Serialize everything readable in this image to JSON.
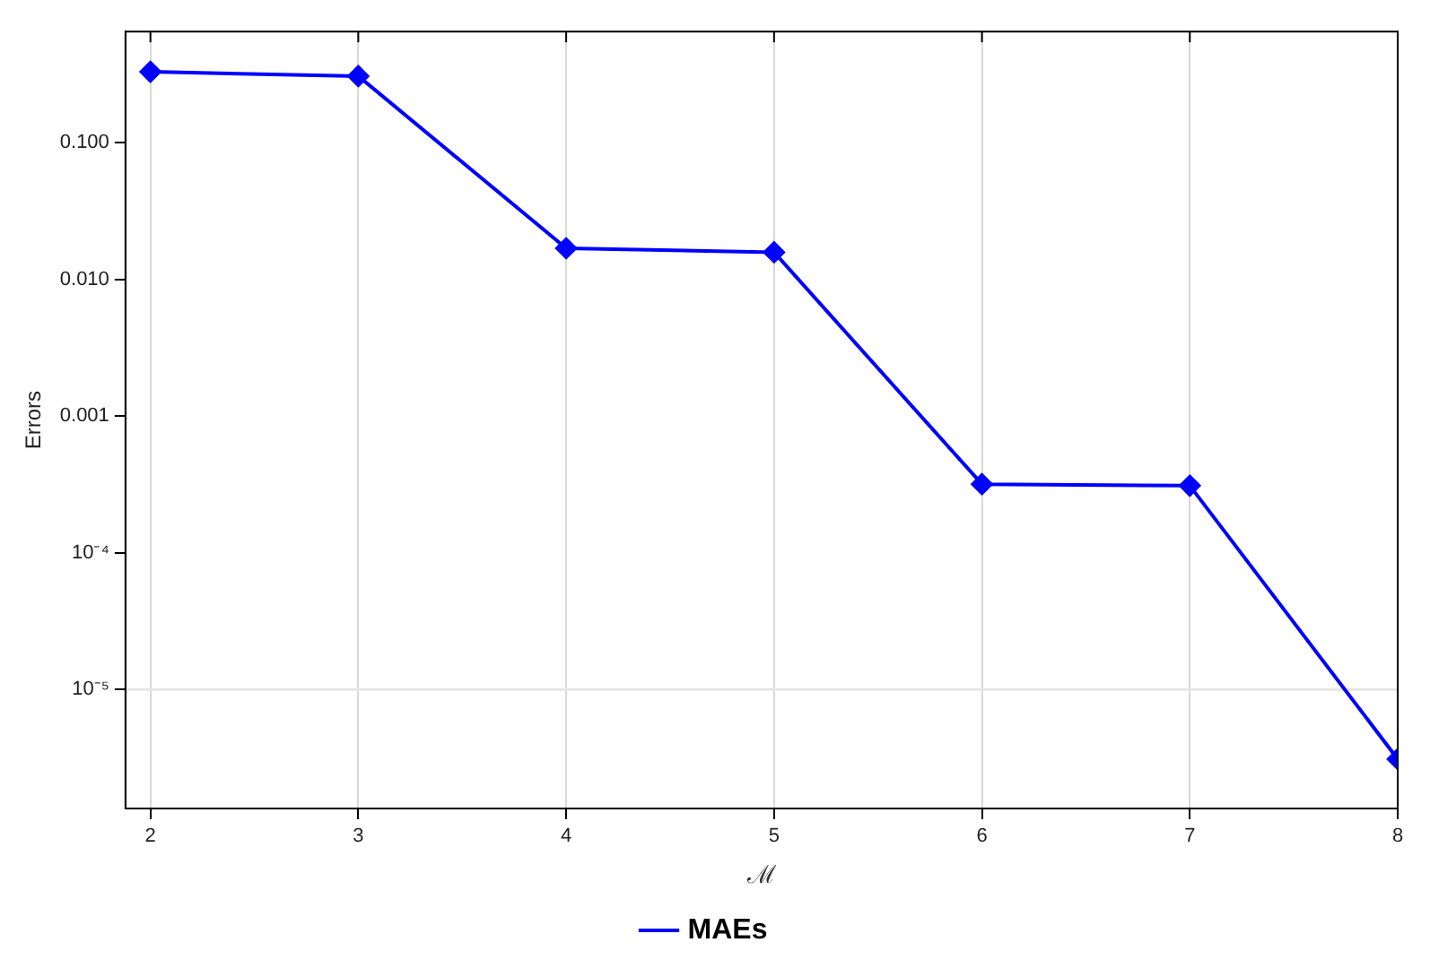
{
  "chart_data": {
    "type": "line",
    "xlabel": "ℳ",
    "ylabel": "Errors",
    "x": [
      2,
      3,
      4,
      5,
      6,
      7,
      8
    ],
    "series": [
      {
        "name": "MAEs",
        "color": "#0000ff",
        "values": [
          0.33,
          0.307,
          0.0169,
          0.0158,
          0.000318,
          0.00031,
          3.1e-06
        ]
      }
    ],
    "xlim": [
      1.88,
      8
    ],
    "xticks": [
      2,
      3,
      4,
      5,
      6,
      7,
      8
    ],
    "ylim": [
      1.35e-06,
      0.65
    ],
    "yticks": [
      {
        "value": 0.1,
        "label": "0.100"
      },
      {
        "value": 0.01,
        "label": "0.010"
      },
      {
        "value": 0.001,
        "label": "0.001"
      },
      {
        "value": 0.0001,
        "label": "10⁻⁴"
      },
      {
        "value": 1e-05,
        "label": "10⁻⁵"
      }
    ],
    "log": "y",
    "grid": "x",
    "legend": "bottom",
    "marker": "diamond",
    "line_style": "solid",
    "ref_lines": [
      {
        "axis": "y",
        "value": 1e-05,
        "color": "#e6e6e6"
      }
    ]
  }
}
